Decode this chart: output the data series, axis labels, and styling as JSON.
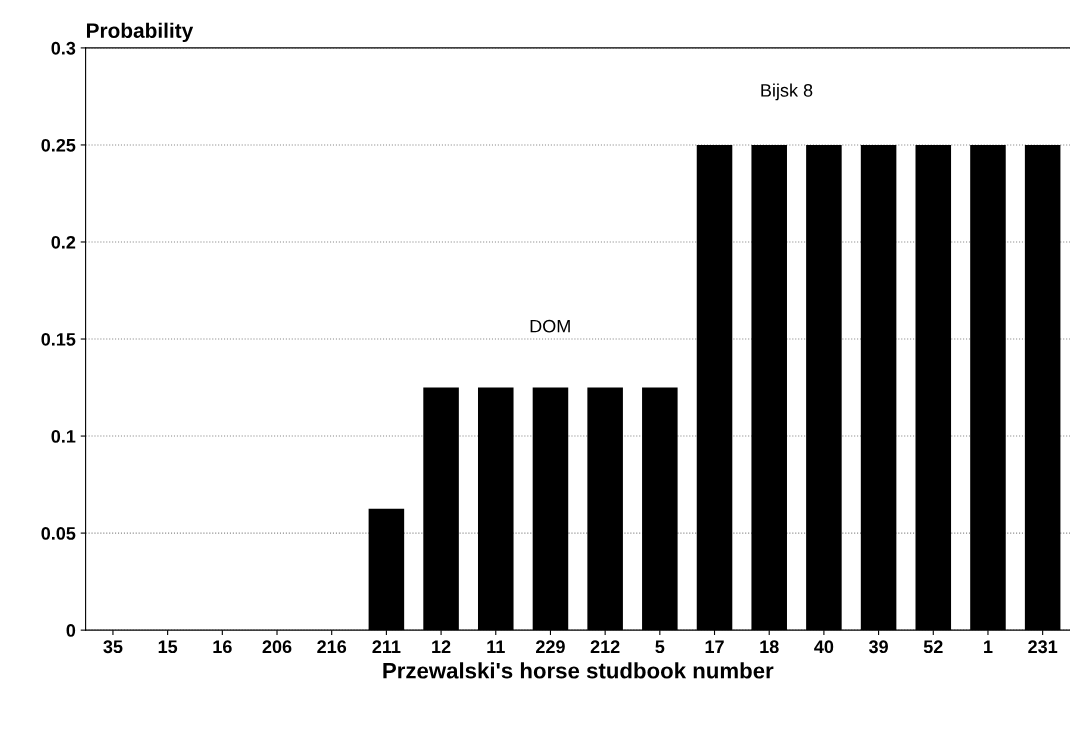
{
  "chart_data": {
    "type": "bar",
    "ylabel": "Probability",
    "xlabel": "Przewalski's horse studbook number",
    "categories": [
      "35",
      "15",
      "16",
      "206",
      "216",
      "211",
      "12",
      "11",
      "229",
      "212",
      "5",
      "17",
      "18",
      "40",
      "39",
      "52",
      "1",
      "231"
    ],
    "values": [
      0,
      0,
      0,
      0,
      0,
      0.0625,
      0.125,
      0.125,
      0.125,
      0.125,
      0.125,
      0.25,
      0.25,
      0.25,
      0.25,
      0.25,
      0.25,
      0.25
    ],
    "color": "#000000",
    "ylim": [
      0,
      0.3
    ],
    "yticks": [
      0,
      0.05,
      0.1,
      0.15,
      0.2,
      0.25,
      0.3
    ],
    "grid": "y",
    "annotations": [
      "DOM",
      "Bijsk 8"
    ]
  }
}
